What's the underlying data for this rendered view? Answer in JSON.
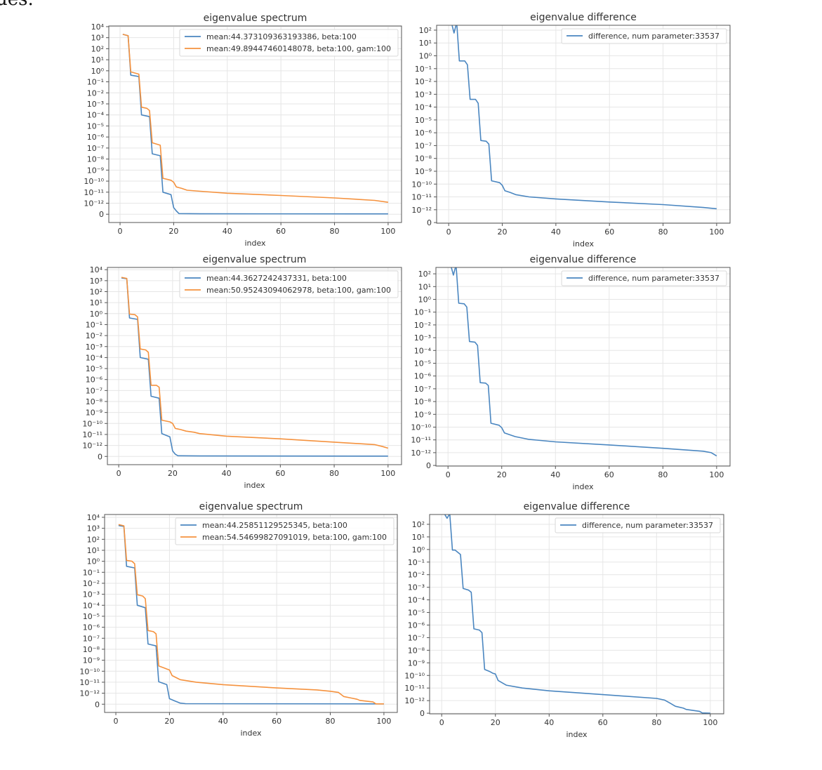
{
  "page_fragment": "ues.",
  "colors": {
    "blue": "#4a86c0",
    "orange": "#f5923e",
    "grid": "#e6e6e6",
    "axis": "#555555"
  },
  "chart_data": [
    {
      "type": "line",
      "title": "eigenvalue spectrum",
      "xlabel": "index",
      "ylabel": "",
      "yscale": "symlog",
      "linthresh": 1e-12,
      "grid": true,
      "legend": "top-right",
      "xlim": [
        -4.2,
        105
      ],
      "ylim": [
        -7.5e-13,
        11500
      ],
      "x_ticks": [
        "0",
        "20",
        "40",
        "60",
        "80",
        "100"
      ],
      "y_ticks": [
        "10⁴",
        "10³",
        "10²",
        "10¹",
        "10⁰",
        "10⁻¹",
        "10⁻²",
        "10⁻³",
        "10⁻⁴",
        "10⁻⁵",
        "10⁻⁶",
        "10⁻⁷",
        "10⁻⁸",
        "10⁻⁹",
        "10⁻¹⁰",
        "10⁻¹¹",
        "10⁻¹²",
        "0"
      ],
      "series": [
        {
          "name": "mean:44.373109363193386, beta:100",
          "color": "#4a86c0",
          "points": [
            [
              1,
              2000
            ],
            [
              3,
              1500
            ],
            [
              4,
              0.4
            ],
            [
              7,
              0.3
            ],
            [
              8,
              0.0001
            ],
            [
              11,
              7e-05
            ],
            [
              12,
              3e-08
            ],
            [
              15,
              2e-08
            ],
            [
              16,
              1e-11
            ],
            [
              19,
              6e-12
            ],
            [
              20,
              6e-13
            ],
            [
              21,
              3e-13
            ],
            [
              22,
              6e-14
            ],
            [
              30,
              4e-14
            ],
            [
              100,
              3e-14
            ]
          ]
        },
        {
          "name": "mean:49.89447460148078, beta:100, gam:100",
          "color": "#f5923e",
          "points": [
            [
              1,
              2000
            ],
            [
              3,
              1500
            ],
            [
              4,
              0.8
            ],
            [
              7,
              0.5
            ],
            [
              8,
              0.0005
            ],
            [
              10,
              0.0004
            ],
            [
              11,
              0.00025
            ],
            [
              12,
              3e-07
            ],
            [
              15,
              1.8e-07
            ],
            [
              16,
              1.8e-10
            ],
            [
              19,
              1.2e-10
            ],
            [
              20,
              8e-11
            ],
            [
              21,
              3e-11
            ],
            [
              23,
              2.2e-11
            ],
            [
              25,
              1.5e-11
            ],
            [
              30,
              1.2e-11
            ],
            [
              40,
              8e-12
            ],
            [
              60,
              5e-12
            ],
            [
              80,
              3e-12
            ],
            [
              95,
              1.8e-12
            ],
            [
              100,
              1.2e-12
            ]
          ]
        }
      ]
    },
    {
      "type": "line",
      "title": "eigenvalue difference",
      "xlabel": "index",
      "ylabel": "",
      "yscale": "symlog",
      "linthresh": 1e-12,
      "grid": true,
      "legend": "top-right",
      "xlim": [
        -4.5,
        105
      ],
      "ylim": [
        -5e-14,
        240
      ],
      "x_ticks": [
        "0",
        "20",
        "40",
        "60",
        "80",
        "100"
      ],
      "y_ticks": [
        "10²",
        "10¹",
        "10⁰",
        "10⁻¹",
        "10⁻²",
        "10⁻³",
        "10⁻⁴",
        "10⁻⁵",
        "10⁻⁶",
        "10⁻⁷",
        "10⁻⁸",
        "10⁻⁹",
        "10⁻¹⁰",
        "10⁻¹¹",
        "10⁻¹²",
        "0"
      ],
      "series": [
        {
          "name": "difference, num parameter:33537",
          "color": "#4a86c0",
          "points": [
            [
              1,
              400
            ],
            [
              2,
              60
            ],
            [
              3,
              400
            ],
            [
              4,
              0.4
            ],
            [
              6,
              0.4
            ],
            [
              7,
              0.2
            ],
            [
              8,
              0.0004
            ],
            [
              10,
              0.0004
            ],
            [
              11,
              0.0002
            ],
            [
              12,
              2.5e-07
            ],
            [
              14,
              2.2e-07
            ],
            [
              15,
              1.3e-07
            ],
            [
              16,
              1.8e-10
            ],
            [
              19,
              1.3e-10
            ],
            [
              20,
              8e-11
            ],
            [
              21,
              3e-11
            ],
            [
              23,
              2.2e-11
            ],
            [
              25,
              1.5e-11
            ],
            [
              30,
              1e-11
            ],
            [
              40,
              7e-12
            ],
            [
              60,
              4e-12
            ],
            [
              80,
              2.5e-12
            ],
            [
              95,
              1.5e-12
            ],
            [
              100,
              1.2e-12
            ]
          ]
        }
      ]
    },
    {
      "type": "line",
      "title": "eigenvalue spectrum",
      "xlabel": "index",
      "ylabel": "",
      "yscale": "symlog",
      "linthresh": 1e-12,
      "grid": true,
      "legend": "top-right",
      "xlim": [
        -4.2,
        105
      ],
      "ylim": [
        -7.5e-13,
        16000
      ],
      "x_ticks": [
        "0",
        "20",
        "40",
        "60",
        "80",
        "100"
      ],
      "y_ticks": [
        "10⁴",
        "10³",
        "10²",
        "10¹",
        "10⁰",
        "10⁻¹",
        "10⁻²",
        "10⁻³",
        "10⁻⁴",
        "10⁻⁵",
        "10⁻⁶",
        "10⁻⁷",
        "10⁻⁸",
        "10⁻⁹",
        "10⁻¹⁰",
        "10⁻¹¹",
        "10⁻¹²",
        "0"
      ],
      "series": [
        {
          "name": "mean:44.3627242437331, beta:100",
          "color": "#4a86c0",
          "points": [
            [
              1,
              1800
            ],
            [
              3,
              1500
            ],
            [
              4,
              0.4
            ],
            [
              7,
              0.3
            ],
            [
              8,
              0.0001
            ],
            [
              11,
              7e-05
            ],
            [
              12,
              3e-08
            ],
            [
              15,
              2e-08
            ],
            [
              16,
              1.2e-11
            ],
            [
              19,
              6e-12
            ],
            [
              20,
              5e-13
            ],
            [
              21,
              2e-13
            ],
            [
              22,
              6e-14
            ],
            [
              30,
              4e-14
            ],
            [
              100,
              3e-14
            ]
          ]
        },
        {
          "name": "mean:50.95243094062978, beta:100, gam:100",
          "color": "#f5923e",
          "points": [
            [
              1,
              2000
            ],
            [
              3,
              1600
            ],
            [
              4,
              0.9
            ],
            [
              6,
              0.8
            ],
            [
              7,
              0.5
            ],
            [
              8,
              0.0006
            ],
            [
              10,
              0.0005
            ],
            [
              11,
              0.0003
            ],
            [
              12,
              3e-07
            ],
            [
              14,
              3e-07
            ],
            [
              15,
              2e-07
            ],
            [
              16,
              2e-10
            ],
            [
              19,
              1.4e-10
            ],
            [
              20,
              1e-10
            ],
            [
              21,
              3.5e-11
            ],
            [
              23,
              2.8e-11
            ],
            [
              25,
              2e-11
            ],
            [
              28,
              1.6e-11
            ],
            [
              30,
              1.2e-11
            ],
            [
              40,
              7e-12
            ],
            [
              60,
              4e-12
            ],
            [
              80,
              2e-12
            ],
            [
              95,
              1.2e-12
            ],
            [
              98,
              9e-13
            ],
            [
              100,
              7.5e-13
            ]
          ]
        }
      ]
    },
    {
      "type": "line",
      "title": "eigenvalue difference",
      "xlabel": "index",
      "ylabel": "",
      "yscale": "symlog",
      "linthresh": 1e-12,
      "grid": true,
      "legend": "top-right",
      "xlim": [
        -4.5,
        105
      ],
      "ylim": [
        -5e-14,
        316
      ],
      "x_ticks": [
        "0",
        "20",
        "40",
        "60",
        "80",
        "100"
      ],
      "y_ticks": [
        "10²",
        "10¹",
        "10⁰",
        "10⁻¹",
        "10⁻²",
        "10⁻³",
        "10⁻⁴",
        "10⁻⁵",
        "10⁻⁶",
        "10⁻⁷",
        "10⁻⁸",
        "10⁻⁹",
        "10⁻¹⁰",
        "10⁻¹¹",
        "10⁻¹²",
        "0"
      ],
      "series": [
        {
          "name": "difference, num parameter:33537",
          "color": "#4a86c0",
          "points": [
            [
              1,
              500
            ],
            [
              2,
              80
            ],
            [
              3,
              500
            ],
            [
              4,
              0.5
            ],
            [
              6,
              0.45
            ],
            [
              7,
              0.25
            ],
            [
              8,
              0.0005
            ],
            [
              10,
              0.00045
            ],
            [
              11,
              0.00025
            ],
            [
              12,
              3e-07
            ],
            [
              14,
              2.8e-07
            ],
            [
              15,
              1.8e-07
            ],
            [
              16,
              2e-10
            ],
            [
              19,
              1.4e-10
            ],
            [
              20,
              9e-11
            ],
            [
              21,
              3.5e-11
            ],
            [
              23,
              2.5e-11
            ],
            [
              25,
              1.8e-11
            ],
            [
              30,
              1.1e-11
            ],
            [
              40,
              7e-12
            ],
            [
              60,
              4e-12
            ],
            [
              80,
              2.2e-12
            ],
            [
              95,
              1.3e-12
            ],
            [
              98,
              1e-12
            ],
            [
              100,
              7.4e-13
            ]
          ]
        }
      ]
    },
    {
      "type": "line",
      "title": "eigenvalue spectrum",
      "xlabel": "index",
      "ylabel": "",
      "yscale": "symlog",
      "linthresh": 1e-12,
      "grid": true,
      "legend": "top-right",
      "xlim": [
        -4.2,
        105
      ],
      "ylim": [
        -7.5e-13,
        18000
      ],
      "x_ticks": [
        "0",
        "20",
        "40",
        "60",
        "80",
        "100"
      ],
      "y_ticks": [
        "10⁴",
        "10³",
        "10²",
        "10¹",
        "10⁰",
        "10⁻¹",
        "10⁻²",
        "10⁻³",
        "10⁻⁴",
        "10⁻⁵",
        "10⁻⁶",
        "10⁻⁷",
        "10⁻⁸",
        "10⁻⁹",
        "10⁻¹⁰",
        "10⁻¹¹",
        "10⁻¹²",
        "0"
      ],
      "series": [
        {
          "name": "mean:44.25851129525345, beta:100",
          "color": "#4a86c0",
          "points": [
            [
              1,
              1800
            ],
            [
              3,
              1500
            ],
            [
              4,
              0.35
            ],
            [
              7,
              0.25
            ],
            [
              8,
              0.0001
            ],
            [
              11,
              6e-05
            ],
            [
              12,
              3e-08
            ],
            [
              15,
              2e-08
            ],
            [
              16,
              1.1e-11
            ],
            [
              19,
              6e-12
            ],
            [
              20,
              5e-13
            ],
            [
              22,
              3e-13
            ],
            [
              24,
              1e-13
            ],
            [
              26,
              5e-14
            ],
            [
              100,
              3e-14
            ]
          ]
        },
        {
          "name": "mean:54.54699827091019, beta:100, gam:100",
          "color": "#f5923e",
          "points": [
            [
              1,
              2200
            ],
            [
              3,
              1700
            ],
            [
              4,
              1.2
            ],
            [
              6,
              1
            ],
            [
              7,
              0.6
            ],
            [
              8,
              0.0009
            ],
            [
              10,
              0.0007
            ],
            [
              11,
              0.0004
            ],
            [
              12,
              5e-07
            ],
            [
              14,
              4e-07
            ],
            [
              15,
              2.5e-07
            ],
            [
              16,
              3e-10
            ],
            [
              18,
              2e-10
            ],
            [
              19,
              1.6e-10
            ],
            [
              20,
              1.3e-10
            ],
            [
              21,
              4e-11
            ],
            [
              24,
              1.7e-11
            ],
            [
              30,
              1e-11
            ],
            [
              40,
              6e-12
            ],
            [
              60,
              3e-12
            ],
            [
              75,
              2e-12
            ],
            [
              80,
              1.5e-12
            ],
            [
              83,
              1.2e-12
            ],
            [
              85,
              7e-13
            ],
            [
              88,
              5.5e-13
            ],
            [
              90,
              4.5e-13
            ],
            [
              91,
              3.5e-13
            ],
            [
              96,
              2e-13
            ],
            [
              97,
              3e-14
            ],
            [
              100,
              3e-14
            ]
          ]
        }
      ]
    },
    {
      "type": "line",
      "title": "eigenvalue difference",
      "xlabel": "index",
      "ylabel": "",
      "yscale": "symlog",
      "linthresh": 1e-12,
      "grid": true,
      "legend": "top-right",
      "xlim": [
        -4.5,
        105
      ],
      "ylim": [
        -5e-14,
        600
      ],
      "x_ticks": [
        "0",
        "20",
        "40",
        "60",
        "80",
        "100"
      ],
      "y_ticks": [
        "10²",
        "10¹",
        "10⁰",
        "10⁻¹",
        "10⁻²",
        "10⁻³",
        "10⁻⁴",
        "10⁻⁵",
        "10⁻⁶",
        "10⁻⁷",
        "10⁻⁸",
        "10⁻⁹",
        "10⁻¹⁰",
        "10⁻¹¹",
        "10⁻¹²",
        "0"
      ],
      "series": [
        {
          "name": "difference, num parameter:33537",
          "color": "#4a86c0",
          "points": [
            [
              1,
              700
            ],
            [
              2,
              300
            ],
            [
              3,
              700
            ],
            [
              4,
              0.9
            ],
            [
              5,
              0.9
            ],
            [
              7,
              0.4
            ],
            [
              8,
              0.0008
            ],
            [
              10,
              0.0006
            ],
            [
              11,
              0.0004
            ],
            [
              12,
              5e-07
            ],
            [
              14,
              4e-07
            ],
            [
              15,
              2.5e-07
            ],
            [
              16,
              3e-10
            ],
            [
              18,
              2e-10
            ],
            [
              19,
              1.5e-10
            ],
            [
              20,
              1.3e-10
            ],
            [
              21,
              4e-11
            ],
            [
              24,
              1.7e-11
            ],
            [
              30,
              1e-11
            ],
            [
              40,
              6e-12
            ],
            [
              60,
              3e-12
            ],
            [
              80,
              1.5e-12
            ],
            [
              83,
              1.1e-12
            ],
            [
              85,
              8e-13
            ],
            [
              87,
              5.5e-13
            ],
            [
              90,
              4e-13
            ],
            [
              91,
              3e-13
            ],
            [
              96,
              1.5e-13
            ],
            [
              97,
              2e-14
            ],
            [
              100,
              0
            ]
          ]
        }
      ]
    }
  ]
}
